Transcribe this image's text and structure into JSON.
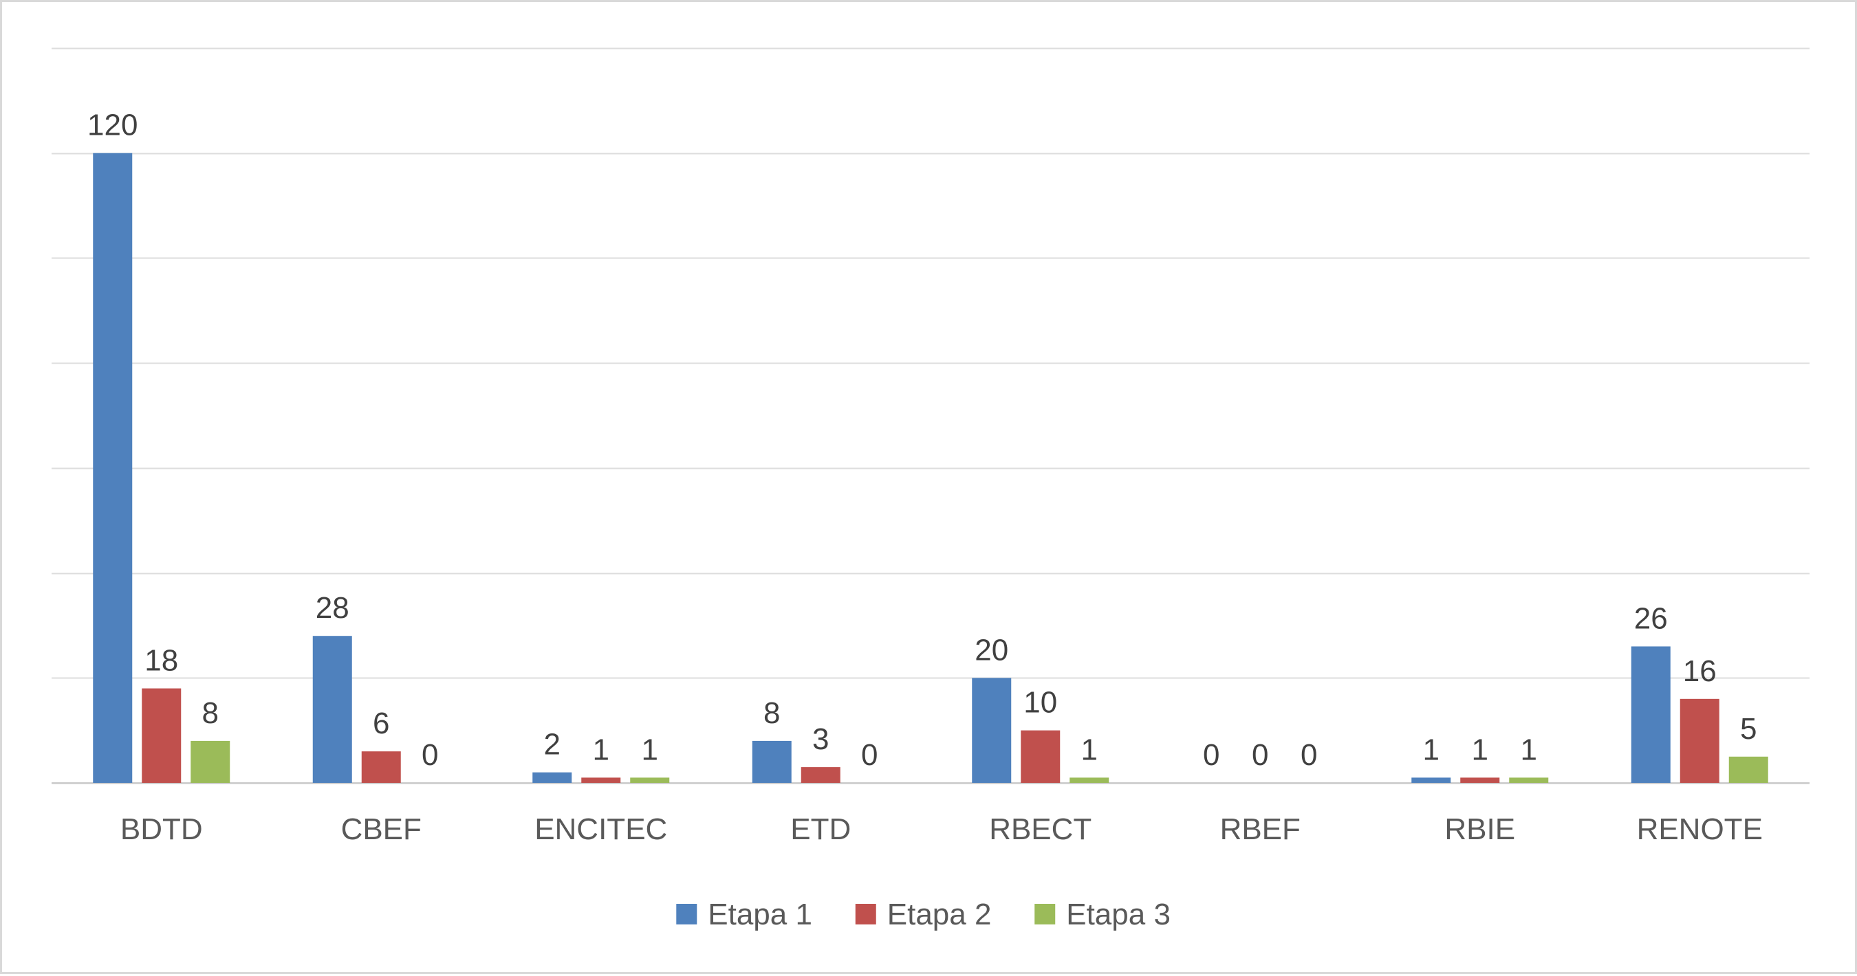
{
  "chart_data": {
    "type": "bar",
    "categories": [
      "BDTD",
      "CBEF",
      "ENCITEC",
      "ETD",
      "RBECT",
      "RBEF",
      "RBIE",
      "RENOTE"
    ],
    "series": [
      {
        "name": "Etapa 1",
        "color": "#4f81bd",
        "values": [
          120,
          28,
          2,
          8,
          20,
          0,
          1,
          26
        ]
      },
      {
        "name": "Etapa 2",
        "color": "#c0504d",
        "values": [
          18,
          6,
          1,
          3,
          10,
          0,
          1,
          16
        ]
      },
      {
        "name": "Etapa 3",
        "color": "#9bbb59",
        "values": [
          8,
          0,
          1,
          0,
          1,
          0,
          1,
          5
        ]
      }
    ],
    "ylim": [
      0,
      140
    ],
    "gridline_step": 20,
    "grid": true,
    "data_labels": true,
    "legend_position": "bottom"
  }
}
